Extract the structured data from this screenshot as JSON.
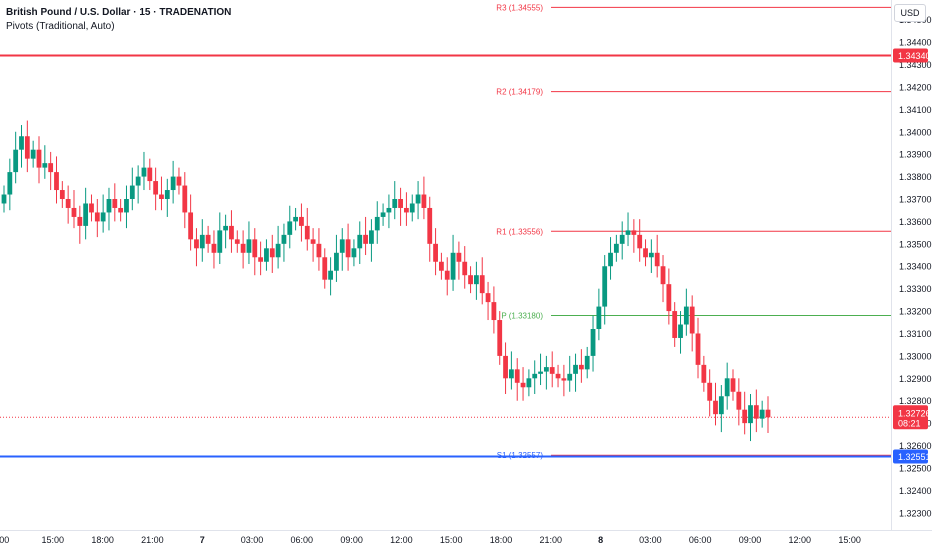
{
  "header": {
    "symbol_title": "British Pound / U.S. Dollar · 15 · TRADENATION",
    "indicator": "Pivots (Traditional, Auto)"
  },
  "price_axis": {
    "currency": "USD",
    "ticks": [
      "1.34500",
      "1.34400",
      "1.34300",
      "1.34200",
      "1.34100",
      "1.34000",
      "1.33900",
      "1.33800",
      "1.33700",
      "1.33600",
      "1.33500",
      "1.33400",
      "1.33300",
      "1.33200",
      "1.33100",
      "1.33000",
      "1.32900",
      "1.32800",
      "1.32700",
      "1.32600",
      "1.32500",
      "1.32400",
      "1.32300"
    ]
  },
  "time_axis": {
    "ticks": [
      ":00",
      "15:00",
      "18:00",
      "21:00",
      "7",
      "03:00",
      "06:00",
      "09:00",
      "12:00",
      "15:00",
      "18:00",
      "21:00",
      "8",
      "03:00",
      "06:00",
      "09:00",
      "12:00",
      "15:00"
    ],
    "bold": [
      "7",
      "8"
    ]
  },
  "colors": {
    "up": "#089981",
    "down": "#f23645",
    "pivot_resistance": "#f23645",
    "pivot_p": "#4caf50",
    "resistance_hline": "#f23645",
    "support_hline": "#2962ff"
  },
  "price_labels": {
    "resistance": "1.34340",
    "support": "1.32551",
    "current": "1.32726",
    "countdown": "08:21"
  },
  "chart_data": {
    "type": "candlestick",
    "title": "British Pound / U.S. Dollar · 15 · TRADENATION",
    "ylim": [
      1.3225,
      1.3457
    ],
    "horizontal_lines": [
      {
        "value": 1.3434,
        "color": "#f23645"
      },
      {
        "value": 1.32551,
        "color": "#2962ff"
      }
    ],
    "pivots": [
      {
        "label": "R3 (1.34555)",
        "value": 1.34555
      },
      {
        "label": "R2 (1.34179)",
        "value": 1.34179
      },
      {
        "label": "R1 (1.33556)",
        "value": 1.33556
      },
      {
        "label": "P (1.33180)",
        "value": 1.3318
      },
      {
        "label": "S1 (1.32557)",
        "value": 1.32557
      }
    ],
    "last_price": 1.32726,
    "close_series": [
      1.3372,
      1.3382,
      1.3392,
      1.3398,
      1.3388,
      1.3392,
      1.3384,
      1.3386,
      1.3382,
      1.3374,
      1.337,
      1.3366,
      1.3362,
      1.3358,
      1.3368,
      1.3364,
      1.336,
      1.3364,
      1.337,
      1.3366,
      1.3364,
      1.337,
      1.3376,
      1.338,
      1.3384,
      1.3378,
      1.3372,
      1.337,
      1.3374,
      1.338,
      1.3376,
      1.3364,
      1.3352,
      1.3348,
      1.3354,
      1.335,
      1.3346,
      1.3356,
      1.3358,
      1.3352,
      1.335,
      1.3346,
      1.3352,
      1.3344,
      1.3342,
      1.3348,
      1.3344,
      1.335,
      1.3354,
      1.336,
      1.3362,
      1.3358,
      1.3352,
      1.335,
      1.3344,
      1.3334,
      1.3338,
      1.3346,
      1.3352,
      1.3344,
      1.3348,
      1.3354,
      1.335,
      1.3356,
      1.3362,
      1.3364,
      1.3366,
      1.337,
      1.3366,
      1.3364,
      1.3368,
      1.3372,
      1.3366,
      1.335,
      1.3342,
      1.3338,
      1.3334,
      1.3346,
      1.3342,
      1.3336,
      1.3332,
      1.3336,
      1.3328,
      1.3324,
      1.3316,
      1.33,
      1.329,
      1.3294,
      1.3288,
      1.3286,
      1.329,
      1.3292,
      1.3293,
      1.3295,
      1.3292,
      1.329,
      1.3289,
      1.3292,
      1.3296,
      1.3294,
      1.33,
      1.3312,
      1.3322,
      1.334,
      1.3346,
      1.335,
      1.3354,
      1.3356,
      1.3354,
      1.3348,
      1.3344,
      1.3346,
      1.334,
      1.3332,
      1.332,
      1.3308,
      1.3314,
      1.3322,
      1.331,
      1.3296,
      1.3288,
      1.328,
      1.3274,
      1.3282,
      1.329,
      1.3284,
      1.3276,
      1.327,
      1.3278,
      1.3272,
      1.3276,
      1.32726
    ]
  }
}
